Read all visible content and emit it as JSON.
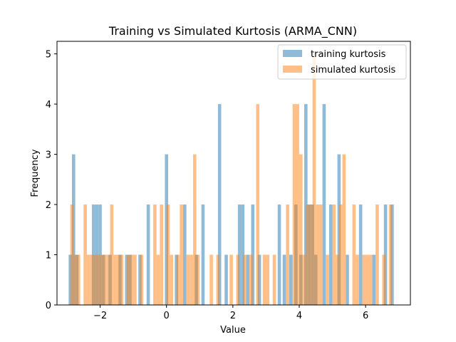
{
  "chart_data": {
    "type": "histogram",
    "title": "Training vs Simulated Kurtosis (ARMA_CNN)",
    "xlabel": "Value",
    "ylabel": "Frequency",
    "xlim": [
      -3.3,
      7.35
    ],
    "ylim": [
      0,
      5.25
    ],
    "x_ticks": [
      -2,
      0,
      2,
      4,
      6
    ],
    "x_tick_labels": [
      "−2",
      "0",
      "2",
      "4",
      "6"
    ],
    "y_ticks": [
      0,
      1,
      2,
      3,
      4,
      5
    ],
    "legend_position": "upper right",
    "bin_width": 0.099,
    "series": [
      {
        "name": "training kurtosis",
        "color": "#1f77b4",
        "alpha": 0.5,
        "bins": [
          {
            "x": -2.9,
            "count": 1
          },
          {
            "x": -2.8,
            "count": 3
          },
          {
            "x": -2.7,
            "count": 1
          },
          {
            "x": -2.2,
            "count": 2
          },
          {
            "x": -2.1,
            "count": 2
          },
          {
            "x": -2.0,
            "count": 2
          },
          {
            "x": -1.9,
            "count": 1
          },
          {
            "x": -1.7,
            "count": 1
          },
          {
            "x": -1.4,
            "count": 1
          },
          {
            "x": -1.2,
            "count": 1
          },
          {
            "x": -1.1,
            "count": 1
          },
          {
            "x": -0.8,
            "count": 1
          },
          {
            "x": -0.55,
            "count": 2
          },
          {
            "x": 0.0,
            "count": 3
          },
          {
            "x": 0.3,
            "count": 1
          },
          {
            "x": 0.55,
            "count": 2
          },
          {
            "x": 0.9,
            "count": 1
          },
          {
            "x": 1.1,
            "count": 2
          },
          {
            "x": 1.6,
            "count": 4
          },
          {
            "x": 1.8,
            "count": 1
          },
          {
            "x": 2.2,
            "count": 2
          },
          {
            "x": 2.3,
            "count": 2
          },
          {
            "x": 2.45,
            "count": 1
          },
          {
            "x": 2.6,
            "count": 2
          },
          {
            "x": 2.8,
            "count": 1
          },
          {
            "x": 3.4,
            "count": 2
          },
          {
            "x": 3.55,
            "count": 1
          },
          {
            "x": 3.75,
            "count": 1
          },
          {
            "x": 3.9,
            "count": 2
          },
          {
            "x": 4.05,
            "count": 1
          },
          {
            "x": 4.2,
            "count": 4
          },
          {
            "x": 4.3,
            "count": 2
          },
          {
            "x": 4.4,
            "count": 2
          },
          {
            "x": 4.5,
            "count": 1
          },
          {
            "x": 4.75,
            "count": 4
          },
          {
            "x": 4.95,
            "count": 2
          },
          {
            "x": 5.2,
            "count": 3
          },
          {
            "x": 5.45,
            "count": 1
          },
          {
            "x": 5.85,
            "count": 2
          },
          {
            "x": 6.25,
            "count": 1
          },
          {
            "x": 6.6,
            "count": 2
          },
          {
            "x": 6.8,
            "count": 2
          }
        ]
      },
      {
        "name": "simulated kurtosis",
        "color": "#ff7f0e",
        "alpha": 0.5,
        "bins": [
          {
            "x": -2.85,
            "count": 2
          },
          {
            "x": -2.75,
            "count": 1
          },
          {
            "x": -2.65,
            "count": 1
          },
          {
            "x": -2.45,
            "count": 2
          },
          {
            "x": -2.35,
            "count": 1
          },
          {
            "x": -2.25,
            "count": 1
          },
          {
            "x": -2.15,
            "count": 1
          },
          {
            "x": -2.05,
            "count": 1
          },
          {
            "x": -1.95,
            "count": 1
          },
          {
            "x": -1.85,
            "count": 1
          },
          {
            "x": -1.75,
            "count": 1
          },
          {
            "x": -1.65,
            "count": 2
          },
          {
            "x": -1.55,
            "count": 1
          },
          {
            "x": -1.45,
            "count": 1
          },
          {
            "x": -1.35,
            "count": 1
          },
          {
            "x": -1.15,
            "count": 1
          },
          {
            "x": -1.05,
            "count": 1
          },
          {
            "x": -0.95,
            "count": 1
          },
          {
            "x": -0.75,
            "count": 1
          },
          {
            "x": -0.35,
            "count": 2
          },
          {
            "x": -0.25,
            "count": 1
          },
          {
            "x": -0.15,
            "count": 2
          },
          {
            "x": 0.05,
            "count": 2
          },
          {
            "x": 0.15,
            "count": 1
          },
          {
            "x": 0.35,
            "count": 1
          },
          {
            "x": 0.45,
            "count": 2
          },
          {
            "x": 0.65,
            "count": 1
          },
          {
            "x": 0.75,
            "count": 1
          },
          {
            "x": 0.85,
            "count": 3
          },
          {
            "x": 0.95,
            "count": 1
          },
          {
            "x": 1.35,
            "count": 1
          },
          {
            "x": 1.55,
            "count": 1
          },
          {
            "x": 1.95,
            "count": 1
          },
          {
            "x": 2.15,
            "count": 1
          },
          {
            "x": 2.35,
            "count": 1
          },
          {
            "x": 2.55,
            "count": 1
          },
          {
            "x": 2.75,
            "count": 4
          },
          {
            "x": 2.95,
            "count": 1
          },
          {
            "x": 3.05,
            "count": 1
          },
          {
            "x": 3.25,
            "count": 1
          },
          {
            "x": 3.65,
            "count": 2
          },
          {
            "x": 3.85,
            "count": 4
          },
          {
            "x": 3.95,
            "count": 4
          },
          {
            "x": 4.05,
            "count": 3
          },
          {
            "x": 4.15,
            "count": 1
          },
          {
            "x": 4.25,
            "count": 2
          },
          {
            "x": 4.35,
            "count": 2
          },
          {
            "x": 4.45,
            "count": 5
          },
          {
            "x": 4.55,
            "count": 2
          },
          {
            "x": 4.65,
            "count": 2
          },
          {
            "x": 4.85,
            "count": 1
          },
          {
            "x": 5.05,
            "count": 2
          },
          {
            "x": 5.15,
            "count": 1
          },
          {
            "x": 5.25,
            "count": 2
          },
          {
            "x": 5.35,
            "count": 3
          },
          {
            "x": 5.65,
            "count": 2
          },
          {
            "x": 5.75,
            "count": 1
          },
          {
            "x": 5.95,
            "count": 1
          },
          {
            "x": 6.05,
            "count": 1
          },
          {
            "x": 6.15,
            "count": 1
          },
          {
            "x": 6.35,
            "count": 2
          },
          {
            "x": 6.55,
            "count": 1
          },
          {
            "x": 6.75,
            "count": 2
          }
        ]
      }
    ]
  }
}
